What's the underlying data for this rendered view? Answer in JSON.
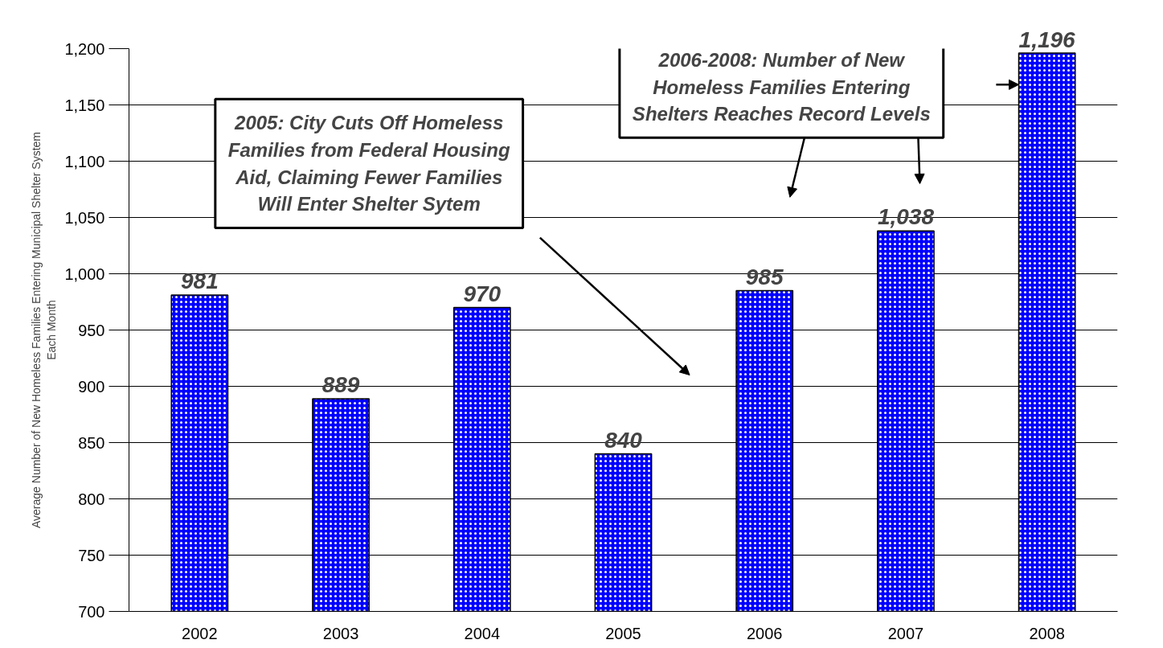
{
  "chart_data": {
    "type": "bar",
    "ylabel": "Average Number of New Homeless Families Entering Municipal Shelter System\nEach Month",
    "categories": [
      "2002",
      "2003",
      "2004",
      "2005",
      "2006",
      "2007",
      "2008"
    ],
    "series": [
      {
        "color": "#0000ff",
        "values": [
          981,
          889,
          970,
          840,
          985,
          1038,
          1196
        ],
        "value_labels": [
          "981",
          "889",
          "970",
          "840",
          "985",
          "1,038",
          "1,196"
        ]
      }
    ],
    "ylim": [
      700,
      1200
    ],
    "yticks": [
      700,
      750,
      800,
      850,
      900,
      950,
      {
        "value": 1000,
        "label": "1,000"
      },
      {
        "value": 1050,
        "label": "1,050"
      },
      {
        "value": 1100,
        "label": "1,100"
      },
      {
        "value": 1150,
        "label": "1,150"
      },
      {
        "value": 1200,
        "label": "1,200"
      }
    ],
    "grid": "y",
    "annotations": [
      "2005: City Cuts Off Homeless\nFamilies from Federal Housing\nAid, Claiming Fewer Families\nWill Enter Shelter Sytem",
      "2006-2008: Number of New\nHomeless Families Entering\nShelters Reaches Record Levels"
    ]
  }
}
